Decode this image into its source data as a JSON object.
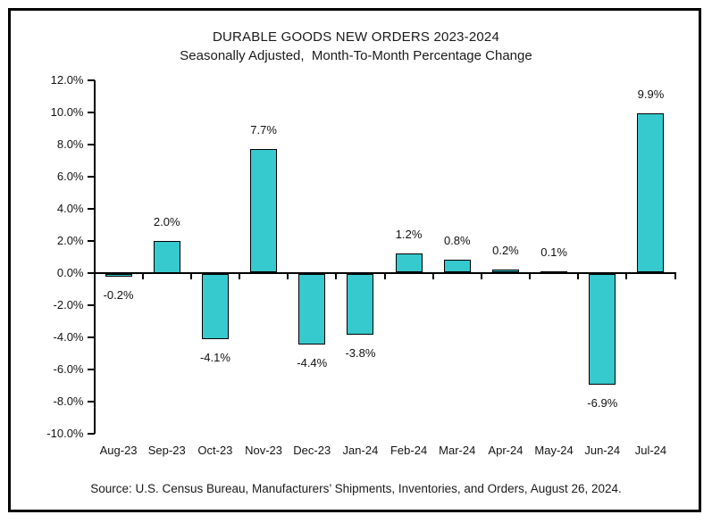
{
  "chart_data": {
    "type": "bar",
    "title": "DURABLE GOODS NEW ORDERS 2023-2024",
    "subtitle": "Seasonally Adjusted,  Month-To-Month Percentage Change",
    "categories": [
      "Aug-23",
      "Sep-23",
      "Oct-23",
      "Nov-23",
      "Dec-23",
      "Jan-24",
      "Feb-24",
      "Mar-24",
      "Apr-24",
      "May-24",
      "Jun-24",
      "Jul-24"
    ],
    "values": [
      -0.2,
      2.0,
      -4.1,
      7.7,
      -4.4,
      -3.8,
      1.2,
      0.8,
      0.2,
      0.1,
      -6.9,
      9.9
    ],
    "data_labels": [
      "-0.2%",
      "2.0%",
      "-4.1%",
      "7.7%",
      "-4.4%",
      "-3.8%",
      "1.2%",
      "0.8%",
      "0.2%",
      "0.1%",
      "-6.9%",
      "9.9%"
    ],
    "xlabel": "",
    "ylabel": "",
    "ylim": [
      -10,
      12
    ],
    "ytick_step": 2,
    "ytick_labels": [
      "12.0%",
      "10.0%",
      "8.0%",
      "6.0%",
      "4.0%",
      "2.0%",
      "0.0%",
      "-2.0%",
      "-4.0%",
      "-6.0%",
      "-8.0%",
      "-10.0%"
    ],
    "grid": false,
    "legend": false,
    "bar_color": "#36C9CE",
    "bar_border_color": "#000000",
    "axis_color": "#000000",
    "text_color": "#1a1a1a"
  },
  "source_note": "Source: U.S. Census Bureau, Manufacturers’ Shipments, Inventories, and Orders, August 26, 2024."
}
